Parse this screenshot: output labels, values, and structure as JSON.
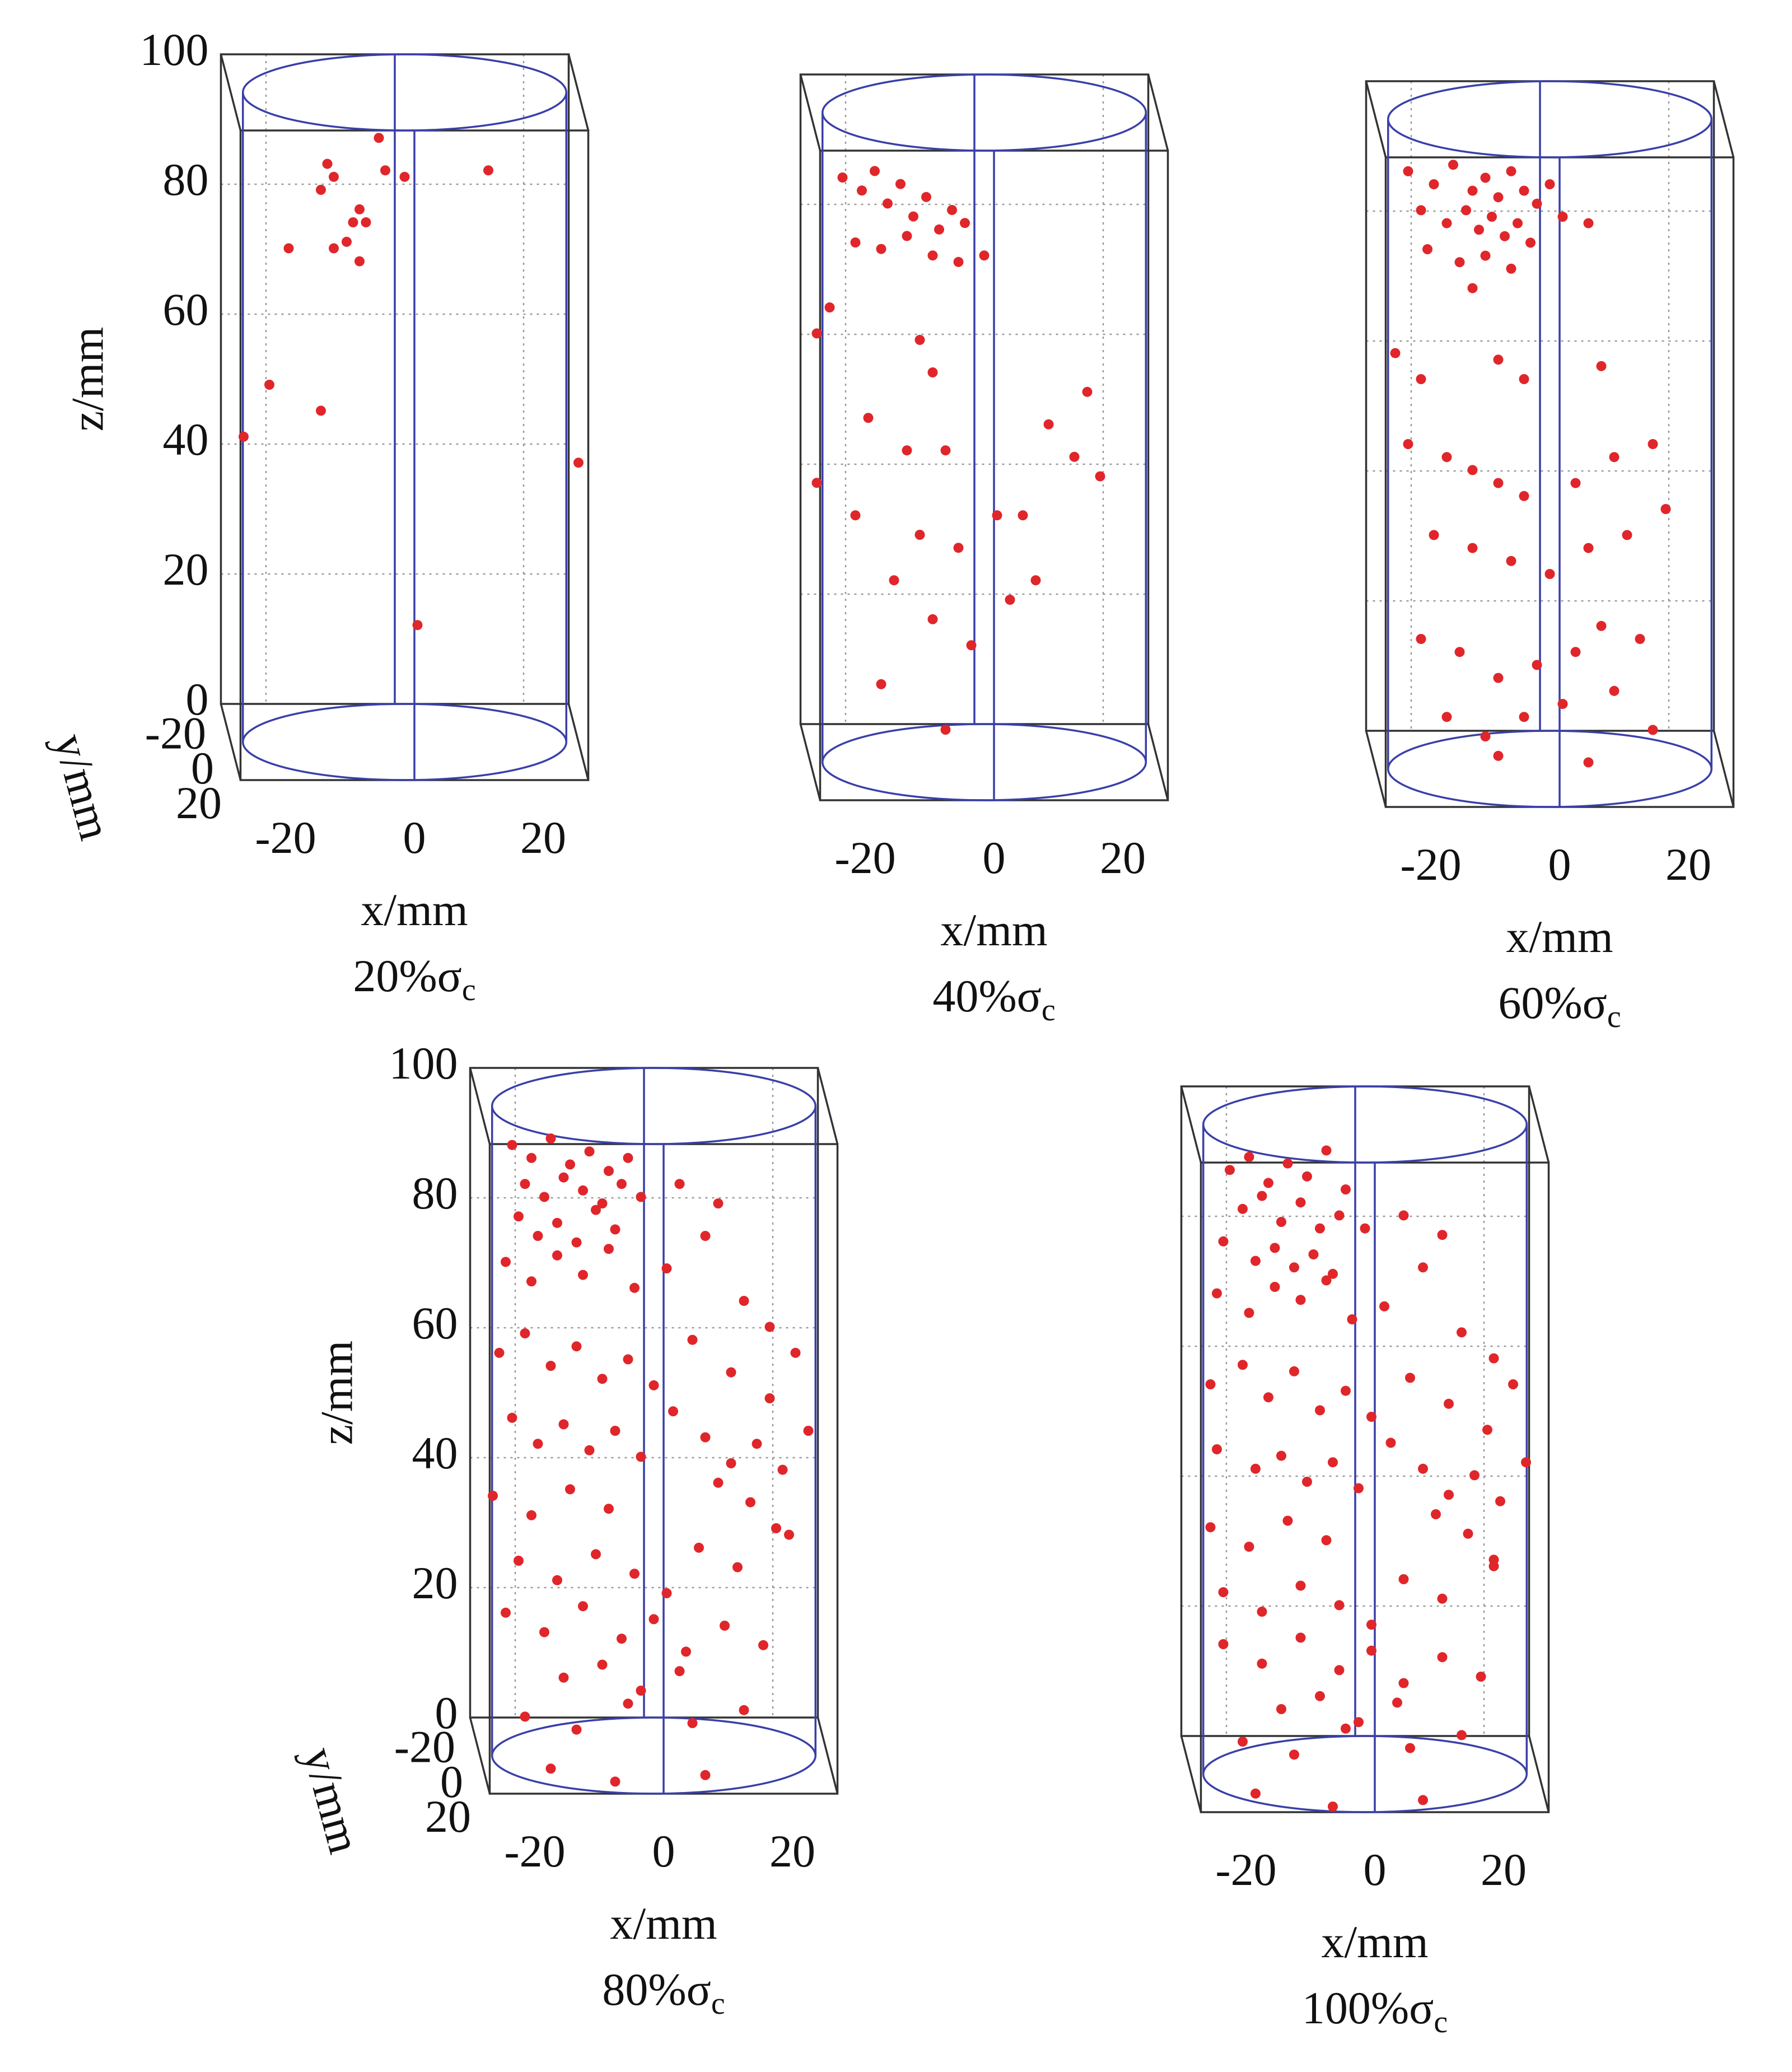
{
  "chart_data": [
    {
      "type": "scatter3d",
      "caption": "20%σ",
      "caption_subscript": "c",
      "xlabel": "x/mm",
      "ylabel": "y/mm",
      "zlabel": "z/mm",
      "color": "#e0262a",
      "xlim": [
        -27,
        27
      ],
      "xticks": [
        -20,
        0,
        20
      ],
      "ylim": [
        -25,
        25
      ],
      "yticks": [
        -20,
        0,
        20
      ],
      "zlim": [
        0,
        100
      ],
      "zticks": [
        0,
        20,
        40,
        60,
        80,
        100
      ],
      "show_ytick_labels": true,
      "show_ztick_labels": true,
      "grid": true,
      "x": [
        -4,
        -12,
        -11,
        -13,
        -7,
        -8,
        -6,
        -11,
        -9,
        -7,
        -18,
        -21,
        -13,
        -25,
        27,
        2,
        -3,
        0,
        13
      ],
      "z": [
        93,
        89,
        87,
        85,
        82,
        80,
        80,
        76,
        77,
        74,
        76,
        55,
        51,
        47,
        43,
        18,
        88,
        87,
        88
      ]
    },
    {
      "type": "scatter3d",
      "caption": "40%σ",
      "caption_subscript": "c",
      "xlabel": "x/mm",
      "color": "#e0262a",
      "xlim": [
        -27,
        27
      ],
      "xticks": [
        -20,
        0,
        20
      ],
      "ylim": [
        -25,
        25
      ],
      "yticks": [
        -20,
        0,
        20
      ],
      "zlim": [
        0,
        100
      ],
      "zticks": [
        0,
        20,
        40,
        60,
        80,
        100
      ],
      "show_ytick_labels": false,
      "show_ztick_labels": false,
      "grid": true,
      "x": [
        -22,
        -19,
        -17,
        -15,
        -13,
        -11,
        -9,
        -7,
        -5,
        -3,
        -20,
        -16,
        -12,
        -8,
        -4,
        0,
        -24,
        -10,
        -8,
        -26,
        -18,
        -12,
        -6,
        -26,
        -20,
        -10,
        -4,
        2,
        6,
        14,
        10,
        16,
        18,
        -14,
        -8,
        -2,
        4,
        8,
        -16,
        -6
      ],
      "z": [
        90,
        88,
        91,
        86,
        89,
        84,
        87,
        82,
        85,
        83,
        80,
        79,
        81,
        78,
        77,
        78,
        70,
        65,
        60,
        66,
        53,
        48,
        48,
        43,
        38,
        35,
        33,
        38,
        38,
        47,
        52,
        57,
        44,
        28,
        22,
        18,
        25,
        28,
        12,
        5
      ]
    },
    {
      "type": "scatter3d",
      "caption": "60%σ",
      "caption_subscript": "c",
      "xlabel": "x/mm",
      "color": "#e0262a",
      "xlim": [
        -27,
        27
      ],
      "xticks": [
        -20,
        0,
        20
      ],
      "ylim": [
        -25,
        25
      ],
      "yticks": [
        -20,
        0,
        20
      ],
      "zlim": [
        0,
        100
      ],
      "zticks": [
        0,
        20,
        40,
        60,
        80,
        100
      ],
      "show_ytick_labels": false,
      "show_ztick_labels": false,
      "grid": true,
      "x": [
        -22,
        -18,
        -15,
        -12,
        -10,
        -8,
        -6,
        -4,
        -2,
        0,
        -20,
        -16,
        -13,
        -11,
        -9,
        -7,
        -5,
        -3,
        2,
        6,
        -19,
        -14,
        -10,
        -6,
        -12,
        -24,
        -20,
        -8,
        -4,
        8,
        -22,
        -16,
        -12,
        -8,
        -4,
        4,
        10,
        16,
        18,
        -18,
        -12,
        -6,
        0,
        6,
        12,
        -20,
        -14,
        -8,
        -2,
        4,
        8,
        14,
        -16,
        -10,
        -4,
        2,
        10,
        16,
        -8,
        6
      ],
      "z": [
        92,
        90,
        93,
        89,
        91,
        88,
        92,
        89,
        87,
        90,
        86,
        84,
        86,
        83,
        85,
        82,
        84,
        81,
        85,
        84,
        80,
        78,
        79,
        77,
        74,
        64,
        60,
        63,
        60,
        62,
        50,
        48,
        46,
        44,
        42,
        44,
        48,
        50,
        40,
        36,
        34,
        32,
        30,
        34,
        36,
        20,
        18,
        14,
        16,
        18,
        22,
        20,
        8,
        5,
        8,
        10,
        12,
        6,
        2,
        1
      ]
    },
    {
      "type": "scatter3d",
      "caption": "80%σ",
      "caption_subscript": "c",
      "xlabel": "x/mm",
      "ylabel": "y/mm",
      "zlabel": "z/mm",
      "color": "#e0262a",
      "xlim": [
        -27,
        27
      ],
      "xticks": [
        -20,
        0,
        20
      ],
      "ylim": [
        -25,
        25
      ],
      "yticks": [
        -20,
        0,
        20
      ],
      "zlim": [
        0,
        100
      ],
      "zticks": [
        0,
        20,
        40,
        60,
        80,
        100
      ],
      "show_ytick_labels": true,
      "show_ztick_labels": true,
      "grid": true,
      "x": [
        -22,
        -19,
        -16,
        -13,
        -10,
        -7,
        -4,
        -20,
        -17,
        -14,
        -11,
        -8,
        -5,
        -21,
        -18,
        -15,
        -12,
        -9,
        -6,
        -2,
        4,
        10,
        -23,
        -19,
        -15,
        -11,
        -7,
        -3,
        2,
        8,
        14,
        18,
        -24,
        -20,
        -16,
        -12,
        -8,
        -4,
        0,
        6,
        12,
        18,
        22,
        -22,
        -18,
        -14,
        -10,
        -6,
        -2,
        3,
        8,
        12,
        16,
        20,
        24,
        -25,
        -19,
        -13,
        -7,
        10,
        15,
        19,
        -21,
        -15,
        -9,
        -3,
        2,
        7,
        13,
        21,
        -23,
        -17,
        -11,
        -5,
        0,
        5,
        11,
        17,
        -14,
        -8,
        -2,
        4,
        -20,
        -12,
        -4,
        6,
        14,
        -16,
        -6,
        8
      ],
      "z": [
        94,
        92,
        95,
        91,
        93,
        90,
        92,
        88,
        86,
        89,
        87,
        85,
        88,
        83,
        80,
        82,
        79,
        84,
        81,
        86,
        88,
        85,
        76,
        73,
        77,
        74,
        78,
        72,
        75,
        80,
        70,
        66,
        62,
        65,
        60,
        63,
        58,
        61,
        57,
        64,
        59,
        55,
        62,
        52,
        48,
        51,
        47,
        50,
        46,
        53,
        49,
        45,
        48,
        44,
        50,
        40,
        37,
        41,
        38,
        42,
        39,
        35,
        30,
        27,
        31,
        28,
        25,
        32,
        29,
        34,
        22,
        19,
        23,
        18,
        21,
        16,
        20,
        17,
        12,
        14,
        10,
        13,
        6,
        4,
        8,
        5,
        7,
        -2,
        -4,
        -3
      ]
    },
    {
      "type": "scatter3d",
      "caption": "100%σ",
      "caption_subscript": "c",
      "xlabel": "x/mm",
      "color": "#e0262a",
      "xlim": [
        -27,
        27
      ],
      "xticks": [
        -20,
        0,
        20
      ],
      "ylim": [
        -25,
        25
      ],
      "yticks": [
        -20,
        0,
        20
      ],
      "zlim": [
        0,
        100
      ],
      "zticks": [
        0,
        20,
        40,
        60,
        80,
        100
      ],
      "show_ytick_labels": false,
      "show_ztick_labels": false,
      "grid": true,
      "x": [
        -21,
        -18,
        -15,
        -12,
        -9,
        -6,
        -3,
        -19,
        -16,
        -13,
        -10,
        -7,
        -4,
        -22,
        -17,
        -14,
        -11,
        -8,
        -5,
        0,
        6,
        12,
        -23,
        -18,
        -14,
        -10,
        -6,
        -2,
        3,
        9,
        15,
        20,
        -24,
        -19,
        -15,
        -11,
        -7,
        -3,
        1,
        7,
        13,
        19,
        23,
        -23,
        -17,
        -13,
        -9,
        -5,
        -1,
        4,
        9,
        13,
        17,
        21,
        25,
        -24,
        -18,
        -12,
        -6,
        11,
        16,
        20,
        -22,
        -16,
        -10,
        -4,
        1,
        6,
        12,
        20,
        -22,
        -16,
        -10,
        -4,
        1,
        6,
        12,
        18,
        -13,
        -7,
        -1,
        5,
        -19,
        -11,
        -3,
        7,
        15,
        -17,
        -5,
        9
      ],
      "z": [
        93,
        95,
        91,
        94,
        92,
        96,
        90,
        87,
        89,
        85,
        88,
        84,
        86,
        82,
        79,
        81,
        78,
        80,
        77,
        84,
        86,
        83,
        74,
        71,
        75,
        73,
        76,
        70,
        72,
        78,
        68,
        64,
        60,
        63,
        58,
        62,
        56,
        59,
        55,
        61,
        57,
        53,
        60,
        50,
        47,
        49,
        45,
        48,
        44,
        51,
        47,
        43,
        46,
        42,
        48,
        38,
        35,
        39,
        36,
        40,
        37,
        33,
        28,
        25,
        29,
        26,
        23,
        30,
        27,
        32,
        20,
        17,
        21,
        16,
        19,
        14,
        18,
        15,
        10,
        12,
        8,
        11,
        5,
        3,
        7,
        4,
        6,
        -3,
        -5,
        -4
      ]
    }
  ]
}
